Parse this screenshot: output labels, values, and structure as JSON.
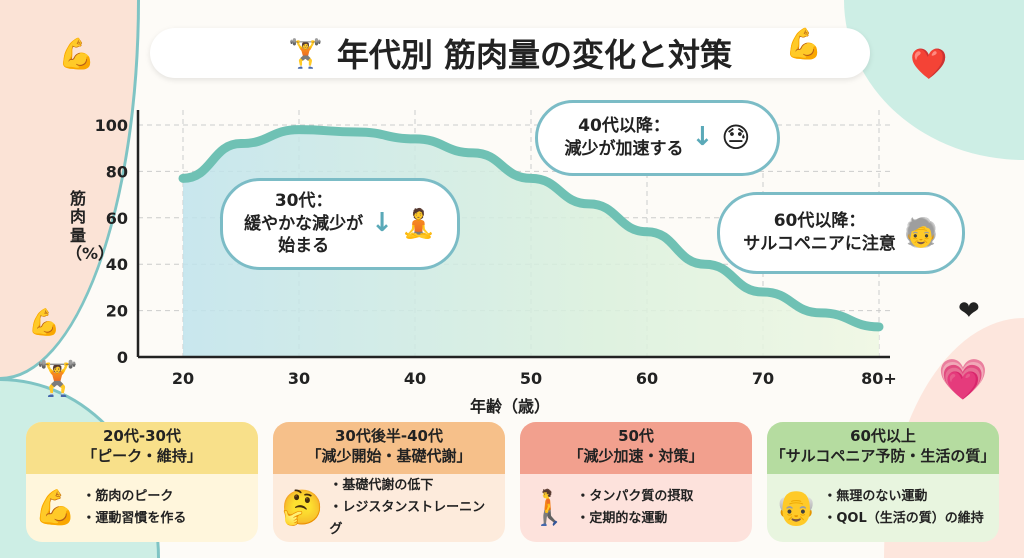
{
  "title": "年代別 筋肉量の変化と対策",
  "chart_data": {
    "type": "line",
    "title": "年代別 筋肉量の変化と対策",
    "xlabel": "年齢（歳）",
    "ylabel": "筋肉量（%）",
    "x": [
      20,
      25,
      30,
      35,
      40,
      45,
      50,
      55,
      60,
      65,
      70,
      75,
      80
    ],
    "x_tick_labels": [
      "20",
      "30",
      "40",
      "50",
      "60",
      "70",
      "80+"
    ],
    "x_ticks": [
      20,
      30,
      40,
      50,
      60,
      70,
      80
    ],
    "y_ticks": [
      0,
      20,
      40,
      60,
      80,
      100
    ],
    "y_tick_labels": [
      "0",
      "20",
      "40",
      "60",
      "80",
      "100"
    ],
    "ylim": [
      0,
      100
    ],
    "xlim": [
      16,
      82
    ],
    "grid": true,
    "series": [
      {
        "name": "筋肉量",
        "values": [
          77,
          92,
          98,
          97,
          94,
          88,
          77,
          66,
          54,
          40,
          28,
          19,
          13
        ]
      }
    ],
    "color": "#6fc1b4"
  },
  "annotations": [
    {
      "title": "30代：",
      "text": "緩やかな減少が",
      "text2": "始まる"
    },
    {
      "title": "40代以降：",
      "text": "減少が加速する"
    },
    {
      "title": "60代以降：",
      "text": "サルコペニアに注意"
    }
  ],
  "cards": [
    {
      "title": "20代-30代",
      "subtitle": "「ピーク・維持」",
      "items": [
        "・筋肉のピーク",
        "・運動習慣を作る"
      ],
      "color": "#f8e08a",
      "bg": "#fff6dc"
    },
    {
      "title": "30代後半-40代",
      "subtitle": "「減少開始・基礎代謝」",
      "items": [
        "・基礎代謝の低下",
        "・レジスタンストレーニング"
      ],
      "color": "#f6c08a",
      "bg": "#fdebdc"
    },
    {
      "title": "50代",
      "subtitle": "「減少加速・対策」",
      "items": [
        "・タンパク質の摂取",
        "・定期的な運動"
      ],
      "color": "#f2a08e",
      "bg": "#fde2dc"
    },
    {
      "title": "60代以上",
      "subtitle": "「サルコペニア予防・生活の質」",
      "items": [
        "・無理のない運動",
        "・QOL（生活の質）の維持"
      ],
      "color": "#b5dca0",
      "bg": "#e8f5df"
    }
  ]
}
